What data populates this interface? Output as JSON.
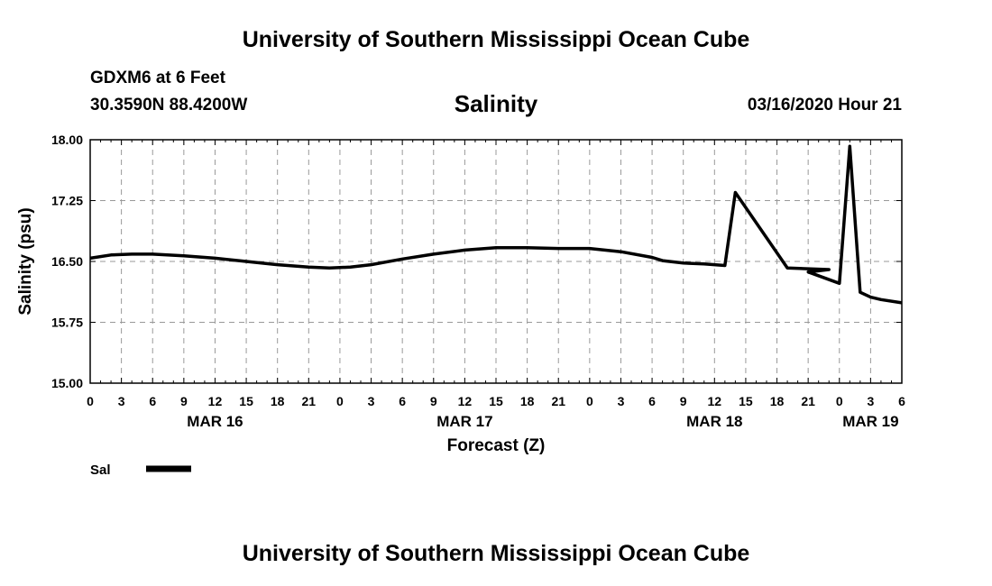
{
  "header": {
    "top_title": "University of Southern Mississippi Ocean Cube",
    "station": "GDXM6 at 6 Feet",
    "coords": "30.3590N 88.4200W",
    "variable_title": "Salinity",
    "datetime": "03/16/2020 Hour 21"
  },
  "footer": {
    "bottom_title": "University of Southern Mississippi Ocean Cube"
  },
  "legend": {
    "label": "Sal",
    "color": "#000000"
  },
  "chart_data": {
    "type": "line",
    "title": "Salinity",
    "xlabel": "Forecast (Z)",
    "ylabel": "Salinity (psu)",
    "xlim": [
      0,
      78
    ],
    "ylim": [
      15.0,
      18.0
    ],
    "grid": true,
    "legend_position": "bottom-left",
    "x_ticks": [
      0,
      3,
      6,
      9,
      12,
      15,
      18,
      21,
      24,
      27,
      30,
      33,
      36,
      39,
      42,
      45,
      48,
      51,
      54,
      57,
      60,
      63,
      66,
      69,
      72,
      75,
      78
    ],
    "x_tick_labels": [
      "0",
      "3",
      "6",
      "9",
      "12",
      "15",
      "18",
      "21",
      "0",
      "3",
      "6",
      "9",
      "12",
      "15",
      "18",
      "21",
      "0",
      "3",
      "6",
      "9",
      "12",
      "15",
      "18",
      "21",
      "0",
      "3",
      "6"
    ],
    "y_ticks": [
      15.0,
      15.75,
      16.5,
      17.25,
      18.0
    ],
    "y_tick_labels": [
      "15.00",
      "15.75",
      "16.50",
      "17.25",
      "18.00"
    ],
    "date_labels": [
      {
        "x": 12,
        "label": "MAR 16"
      },
      {
        "x": 36,
        "label": "MAR 17"
      },
      {
        "x": 60,
        "label": "MAR 18"
      },
      {
        "x": 75,
        "label": "MAR 19"
      }
    ],
    "series": [
      {
        "name": "Sal",
        "x": [
          0,
          2,
          4,
          6,
          9,
          12,
          15,
          18,
          21,
          23,
          25,
          27,
          30,
          33,
          36,
          39,
          42,
          45,
          48,
          51,
          54,
          55,
          57,
          59,
          61,
          62,
          67,
          71,
          69,
          72,
          73,
          74,
          75,
          76,
          78
        ],
        "y": [
          16.54,
          16.58,
          16.59,
          16.59,
          16.57,
          16.54,
          16.5,
          16.46,
          16.43,
          16.42,
          16.43,
          16.46,
          16.53,
          16.59,
          16.64,
          16.67,
          16.67,
          16.66,
          16.66,
          16.62,
          16.55,
          16.51,
          16.48,
          16.47,
          16.45,
          17.35,
          16.42,
          16.4,
          16.37,
          16.23,
          17.92,
          16.12,
          16.06,
          16.03,
          15.99
        ]
      }
    ]
  }
}
